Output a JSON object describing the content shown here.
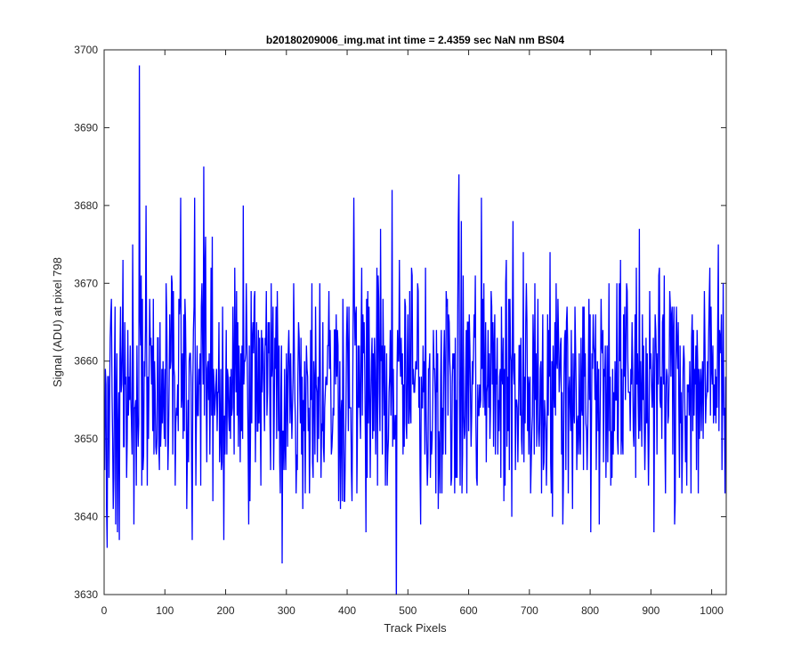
{
  "chart_data": {
    "type": "line",
    "title": "b20180209006_img.mat int time = 2.4359 sec  NaN nm BS04",
    "xlabel": "Track Pixels",
    "ylabel": "Signal (ADU) at pixel 798",
    "xlim": [
      0,
      1024
    ],
    "ylim": [
      3630,
      3700
    ],
    "xticks": [
      0,
      100,
      200,
      300,
      400,
      500,
      600,
      700,
      800,
      900,
      1000
    ],
    "yticks": [
      3630,
      3640,
      3650,
      3660,
      3670,
      3680,
      3690,
      3700
    ],
    "grid": false,
    "legend": "none",
    "colors": {
      "series": "#0000ff",
      "axes": "#262626"
    },
    "series": [
      {
        "y_summary": {
          "count": 1024,
          "mean": 3657,
          "min": 3628,
          "max": 3698
        },
        "peaks": [
          {
            "x": 57,
            "y": 3698
          },
          {
            "x": 68,
            "y": 3680
          },
          {
            "x": 125,
            "y": 3681
          },
          {
            "x": 148,
            "y": 3681
          },
          {
            "x": 163,
            "y": 3685
          },
          {
            "x": 228,
            "y": 3680
          },
          {
            "x": 410,
            "y": 3681
          },
          {
            "x": 473,
            "y": 3682
          },
          {
            "x": 583,
            "y": 3684
          },
          {
            "x": 620,
            "y": 3681
          },
          {
            "x": 672,
            "y": 3678
          },
          {
            "x": 880,
            "y": 3677
          },
          {
            "x": 1010,
            "y": 3675
          }
        ],
        "troughs": [
          {
            "x": 48,
            "y": 3639
          },
          {
            "x": 144,
            "y": 3637
          },
          {
            "x": 196,
            "y": 3637
          },
          {
            "x": 292,
            "y": 3634
          },
          {
            "x": 430,
            "y": 3638
          },
          {
            "x": 480,
            "y": 3628
          },
          {
            "x": 670,
            "y": 3640
          },
          {
            "x": 800,
            "y": 3638
          }
        ]
      }
    ]
  }
}
